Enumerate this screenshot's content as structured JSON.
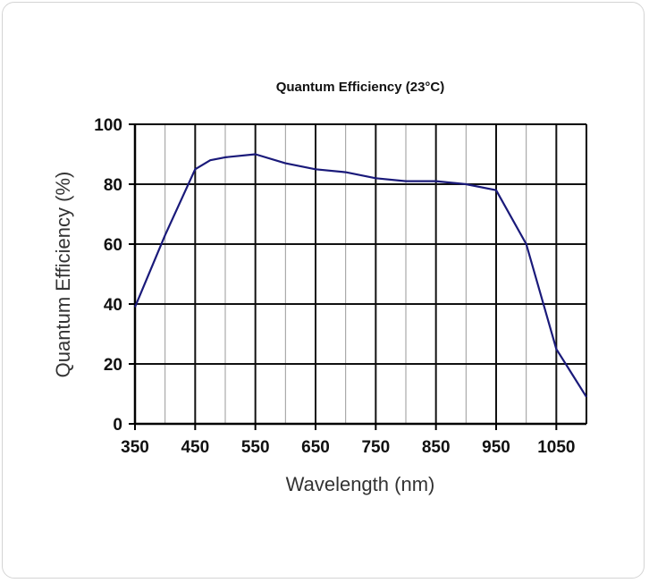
{
  "chart_data": {
    "type": "line",
    "title": "Quantum  Efficiency (23°C)",
    "xlabel": "Wavelength (nm)",
    "ylabel": "Quantum Efficiency (%)",
    "xlim": [
      350,
      1100
    ],
    "ylim": [
      0,
      100
    ],
    "x_ticks": [
      350,
      450,
      550,
      650,
      750,
      850,
      950,
      1050
    ],
    "y_ticks": [
      0,
      20,
      40,
      60,
      80,
      100
    ],
    "grid": true,
    "line_color": "#1a1a7a",
    "series": [
      {
        "x": [
          350,
          400,
          450,
          475,
          500,
          550,
          600,
          650,
          700,
          750,
          800,
          850,
          900,
          950,
          1000,
          1050,
          1100
        ],
        "y": [
          39,
          63,
          85,
          88,
          89,
          90,
          87,
          85,
          84,
          82,
          81,
          81,
          80,
          78,
          60,
          25,
          9
        ]
      }
    ]
  }
}
